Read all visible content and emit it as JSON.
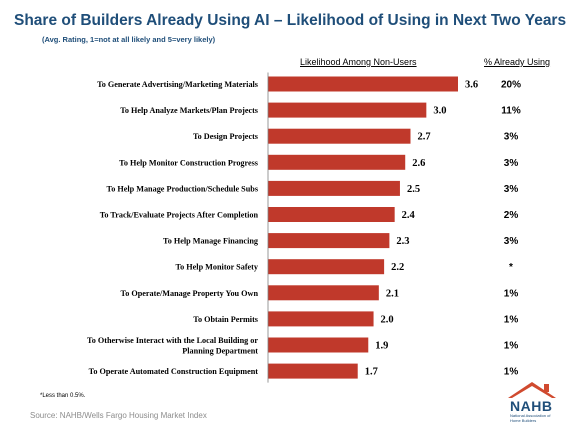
{
  "title": "Share of Builders Already Using AI – Likelihood of Using in Next Two Years",
  "subtitle": "(Avg. Rating, 1=not at all likely and 5=very likely)",
  "footnote": "*Less than 0.5%.",
  "source": "Source: NAHB/Wells Fargo Housing Market Index",
  "logo": {
    "text": "NAHB",
    "subtext": "National Association of Home Builders"
  },
  "colors": {
    "bar": "#c0392b",
    "title": "#1f4e79"
  },
  "chart_data": {
    "type": "bar",
    "orientation": "horizontal",
    "series_name": "Likelihood Among Non-Users",
    "pct_column_header": "% Already Using",
    "categories": [
      "To Generate Advertising/Marketing Materials",
      "To Help Analyze Markets/Plan Projects",
      "To Design Projects",
      "To Help Monitor Construction Progress",
      "To Help Manage Production/Schedule Subs",
      "To Track/Evaluate Projects After Completion",
      "To Help Manage Financing",
      "To Help Monitor Safety",
      "To Operate/Manage Property You Own",
      "To Obtain Permits",
      "To Otherwise Interact with the Local Building or Planning Department",
      "To Operate Automated Construction Equipment"
    ],
    "values": [
      3.6,
      3.0,
      2.7,
      2.6,
      2.5,
      2.4,
      2.3,
      2.2,
      2.1,
      2.0,
      1.9,
      1.7
    ],
    "value_labels": [
      "3.6",
      "3.0",
      "2.7",
      "2.6",
      "2.5",
      "2.4",
      "2.3",
      "2.2",
      "2.1",
      "2.0",
      "1.9",
      "1.7"
    ],
    "pct_already_using": [
      "20%",
      "11%",
      "3%",
      "3%",
      "3%",
      "2%",
      "3%",
      "*",
      "1%",
      "1%",
      "1%",
      "1%"
    ],
    "xlim": [
      0,
      3.6
    ],
    "grid": false,
    "legend": "none"
  }
}
